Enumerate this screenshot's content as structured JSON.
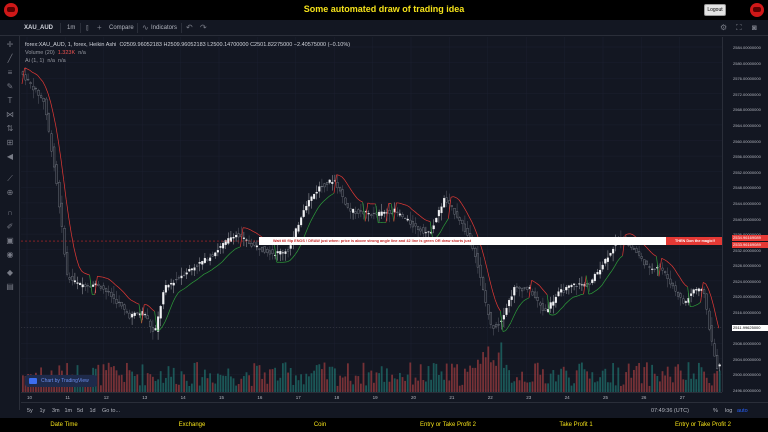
{
  "app": {
    "title": "Some automated draw of trading idea",
    "logout_label": "Logout",
    "colors": {
      "title": "#f5e21a",
      "bull": "#26a69a",
      "bear": "#ef5350"
    }
  },
  "toolbar": {
    "symbol": "XAU_AUD",
    "interval": "1m",
    "compare_label": "Compare",
    "indicators_label": "Indicators"
  },
  "legend": {
    "main": "forex:XAU_AUD, 1, forex, Heikin Ashi",
    "ohlc": "O2509.96052183  H2509.96052183  L2500.14700000  C2501.82275000  −2.40575000 (−0.10%)",
    "volume_label": "Volume (20)",
    "volume_value": "1.323K",
    "volume_na": "n/a",
    "ind_label": "Ai (1, 1)",
    "ind_na1": "n/a",
    "ind_na2": "n/a"
  },
  "annotations": {
    "left": "Wait till flip ENOS !   DRAW just when:  price is above strong angle line and 42 line is green       OR       draw shorts just when price still below strong angle line and 42 line is red",
    "right": "",
    "then": "THEN Don the magic!!"
  },
  "badge": {
    "label": "Chart by TradingView"
  },
  "price_axis": {
    "ticks": [
      "2584.00000000",
      "2580.00000000",
      "2576.00000000",
      "2572.00000000",
      "2568.00000000",
      "2564.00000000",
      "2560.00000000",
      "2556.00000000",
      "2552.00000000",
      "2548.00000000",
      "2544.00000000",
      "2540.00000000",
      "2536.00000000",
      "2532.00000000",
      "2528.00000000",
      "2524.00000000",
      "2520.00000000",
      "2516.00000000",
      "2512.00000000",
      "2508.00000000",
      "2504.00000000",
      "2500.00000000",
      "2496.00000000"
    ],
    "tag_red_1": "2534.96169089",
    "tag_red_2": "2533.96169089",
    "tag_current": "2511.99625000"
  },
  "time_axis": {
    "ticks": [
      "10",
      "11",
      "12",
      "13",
      "14",
      "15",
      "16",
      "17",
      "18",
      "19",
      "20",
      "21",
      "22",
      "23",
      "24",
      "25",
      "26",
      "27"
    ]
  },
  "bottom_bar": {
    "ranges": [
      "5y",
      "1y",
      "3m",
      "1m",
      "5d",
      "1d",
      "Go to..."
    ],
    "time": "07:49:36 (UTC)",
    "pct": "%",
    "log": "log",
    "auto": "auto"
  },
  "form_labels": [
    "Date Time",
    "Exchange",
    "Coin",
    "Entry or Take Profit 2",
    "Take Profit 1",
    "Entry or Take Profit 2"
  ]
}
